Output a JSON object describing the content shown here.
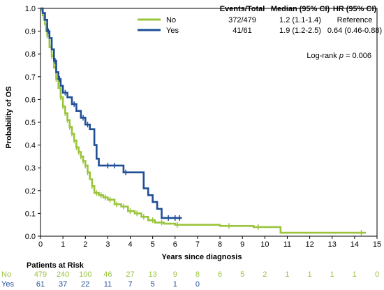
{
  "chart_data": {
    "type": "line",
    "title": "",
    "xlabel": "Years since diagnosis",
    "ylabel": "Probability of OS",
    "xlim": [
      0,
      15
    ],
    "ylim": [
      0,
      1.0
    ],
    "x_ticks": [
      0,
      1,
      2,
      3,
      4,
      5,
      6,
      7,
      8,
      9,
      10,
      11,
      12,
      13,
      14,
      15
    ],
    "y_ticks": [
      "0.0",
      "0.1",
      "0.2",
      "0.3",
      "0.4",
      "0.5",
      "0.6",
      "0.7",
      "0.8",
      "0.9",
      "1.0"
    ],
    "grid": false,
    "legend_position": "top-right",
    "legend_headers": {
      "events": "Events/Total",
      "median": "Median (95% CI)",
      "hr": "HR (95% CI)"
    },
    "logrank": {
      "prefix": "Log-rank ",
      "p_symbol": "p",
      "value": "= 0.006"
    },
    "series": [
      {
        "name": "No",
        "color": "#9ac43c",
        "events": "372/479",
        "median": "1.2 (1.1-1.4)",
        "hr": "Reference",
        "x": [
          0,
          0.05,
          0.1,
          0.15,
          0.2,
          0.25,
          0.3,
          0.4,
          0.5,
          0.6,
          0.7,
          0.8,
          0.9,
          1.0,
          1.1,
          1.2,
          1.3,
          1.4,
          1.5,
          1.6,
          1.7,
          1.8,
          1.9,
          2.0,
          2.1,
          2.2,
          2.3,
          2.4,
          2.6,
          2.8,
          3.0,
          3.3,
          3.6,
          3.9,
          4.2,
          4.5,
          4.8,
          5.1,
          5.5,
          6.0,
          8.0,
          9.5,
          10.7,
          14.5
        ],
        "y": [
          1.0,
          0.99,
          0.97,
          0.95,
          0.93,
          0.9,
          0.88,
          0.83,
          0.79,
          0.74,
          0.69,
          0.65,
          0.61,
          0.57,
          0.54,
          0.51,
          0.48,
          0.45,
          0.42,
          0.39,
          0.37,
          0.35,
          0.33,
          0.31,
          0.28,
          0.25,
          0.22,
          0.19,
          0.18,
          0.17,
          0.16,
          0.14,
          0.13,
          0.11,
          0.1,
          0.085,
          0.07,
          0.06,
          0.055,
          0.05,
          0.045,
          0.04,
          0.015,
          0.015
        ],
        "censor_x": [
          0.3,
          0.5,
          0.7,
          0.9,
          1.0,
          1.1,
          1.2,
          1.3,
          1.4,
          1.5,
          1.6,
          1.7,
          1.8,
          1.9,
          2.0,
          2.1,
          2.3,
          2.5,
          2.7,
          2.9,
          3.1,
          3.4,
          3.7,
          4.0,
          4.3,
          4.6,
          5.0,
          5.4,
          6.1,
          8.4,
          9.7,
          14.3
        ],
        "risk": [
          "479",
          "240",
          "100",
          "46",
          "27",
          "13",
          "9",
          "8",
          "6",
          "5",
          "2",
          "1",
          "1",
          "1",
          "1",
          "0"
        ]
      },
      {
        "name": "Yes",
        "color": "#1f4e96",
        "events": "41/61",
        "median": "1.9 (1.2-2.5)",
        "hr": "0.64 (0.46-0.88)",
        "x": [
          0,
          0.1,
          0.2,
          0.3,
          0.4,
          0.5,
          0.6,
          0.7,
          0.8,
          0.9,
          1.0,
          1.2,
          1.4,
          1.6,
          1.8,
          2.0,
          2.2,
          2.4,
          2.5,
          2.6,
          3.5,
          3.7,
          4.0,
          4.6,
          4.8,
          5.0,
          5.2,
          5.4,
          6.3
        ],
        "y": [
          1.0,
          0.98,
          0.95,
          0.9,
          0.87,
          0.82,
          0.77,
          0.72,
          0.69,
          0.66,
          0.63,
          0.61,
          0.58,
          0.55,
          0.52,
          0.49,
          0.47,
          0.4,
          0.34,
          0.31,
          0.31,
          0.28,
          0.28,
          0.21,
          0.18,
          0.15,
          0.12,
          0.08,
          0.08
        ],
        "censor_x": [
          0.35,
          0.65,
          0.85,
          1.1,
          1.5,
          1.9,
          2.1,
          3.0,
          3.3,
          3.8,
          5.7,
          6.0,
          6.2
        ],
        "risk": [
          "61",
          "37",
          "22",
          "11",
          "7",
          "5",
          "1",
          "0"
        ]
      }
    ],
    "risk_table_title": "Patients at Risk"
  }
}
